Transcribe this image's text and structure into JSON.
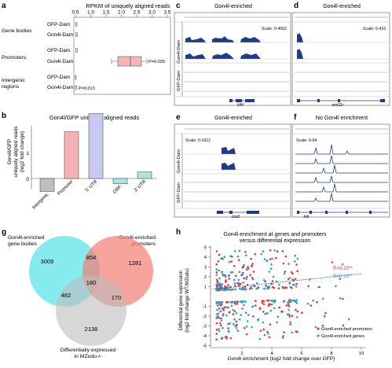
{
  "panels": {
    "a": {
      "letter": "a",
      "title": "RPKM of uniquely aligned reads",
      "ticks": [
        "0.5",
        "1.0",
        "1.5",
        "2.0",
        "2.5",
        "3.0",
        "3.5"
      ],
      "groups": [
        "Gene bodies",
        "Promoters",
        "Intergenic regions"
      ],
      "rows": [
        "GFP-Dam",
        "Gon4l-Dam",
        "GFP-Dam",
        "Gon4l-Dam",
        "GFP-Dam",
        "Gon4l-Dam"
      ],
      "annotations": [
        "P=0.028",
        "P=0.013"
      ]
    },
    "b": {
      "letter": "b",
      "title": "Gon4l/GFP uniquely aligned reads",
      "ylabel_lines": [
        "Gon4l/GFP",
        "uniquely aligned reads",
        "(log2 fold change)"
      ],
      "yticks": [
        "1",
        "0"
      ],
      "categories": [
        "Intergenic",
        "Promoter",
        "5' UTR",
        "ORF",
        "3' UTR"
      ],
      "colors": [
        "#bfbfbf",
        "#f7b3b3",
        "#c8c8f2",
        "#a8e6e6",
        "#b3e6c7"
      ]
    },
    "c": {
      "letter": "c",
      "title": "Gon4l-enriched",
      "scale": "Scale: 0-4002",
      "track1": "Gon4l-Dam",
      "track2": "GFP-Dam",
      "gene": "klf4"
    },
    "d": {
      "letter": "d",
      "title": "Gon4l-enriched",
      "scale": "Scale: 0-416",
      "gene": "wnt11r"
    },
    "e": {
      "letter": "e",
      "title": "Gon4l-enriched",
      "scale": "Scale: 0-1612",
      "track1": "Gon4l-Dam",
      "track2": "GFP-Dam",
      "gene": "clut2"
    },
    "f": {
      "letter": "f",
      "title": "No Gon4l enrichment",
      "scale": "Scale: 0-64",
      "gene": "kdr"
    },
    "g": {
      "letter": "g",
      "label_left": [
        "Gon4l-enriched",
        "gene bodies"
      ],
      "label_right": [
        "Gon4l-enriched",
        "promoters"
      ],
      "label_bottom": [
        "Differentially expressed",
        "in MZudu-/-"
      ],
      "counts": {
        "left": "3009",
        "right": "1281",
        "bottom": "2138",
        "lr": "854",
        "lb": "482",
        "rb": "170",
        "center": "180"
      }
    },
    "h": {
      "letter": "h",
      "title_lines": [
        "Gon4l enrichment at genes and promoters",
        "versus differential expression"
      ],
      "ylabel_lines": [
        "Differential gene expression",
        "(log2 fold change WT/MZudu)"
      ],
      "xlabel": "Gon4l enrichment (log2 fold change over GFP)",
      "xticks": [
        "2",
        "4",
        "6",
        "8",
        "10"
      ],
      "yticks": [
        "5",
        "4",
        "3",
        "2",
        "1",
        "-1",
        "-2",
        "-3",
        "-4",
        "-5"
      ],
      "r_promoters": "R=0.20**",
      "r_genes": "R=0.16**",
      "legend": [
        "Gon4l-enriched promoters",
        "Gon4l-enriched genes"
      ],
      "colors": {
        "promoters": "#e03a2f",
        "genes": "#2a9fd6",
        "trend": "#1f3f8f"
      }
    }
  },
  "chart_data": [
    {
      "type": "bar",
      "title": "Gon4l/GFP uniquely aligned reads",
      "ylabel": "Gon4l/GFP uniquely aligned reads (log2 fold change)",
      "categories": [
        "Intergenic",
        "Promoter",
        "5' UTR",
        "ORF",
        "3' UTR"
      ],
      "values": [
        -0.5,
        1.8,
        2.5,
        -0.2,
        0.25
      ],
      "ylim": [
        -0.8,
        3.0
      ],
      "grid": false
    },
    {
      "type": "scatter",
      "title": "Gon4l enrichment at genes and promoters versus differential expression",
      "xlabel": "Gon4l enrichment (log2 fold change over GFP)",
      "ylabel": "Differential gene expression (log2 fold change WT/MZudu)",
      "xlim": [
        0,
        10
      ],
      "ylim": [
        -5,
        5
      ],
      "series": [
        {
          "name": "Gon4l-enriched promoters",
          "r": "R=0.20**"
        },
        {
          "name": "Gon4l-enriched genes",
          "r": "R=0.16**"
        }
      ]
    }
  ]
}
